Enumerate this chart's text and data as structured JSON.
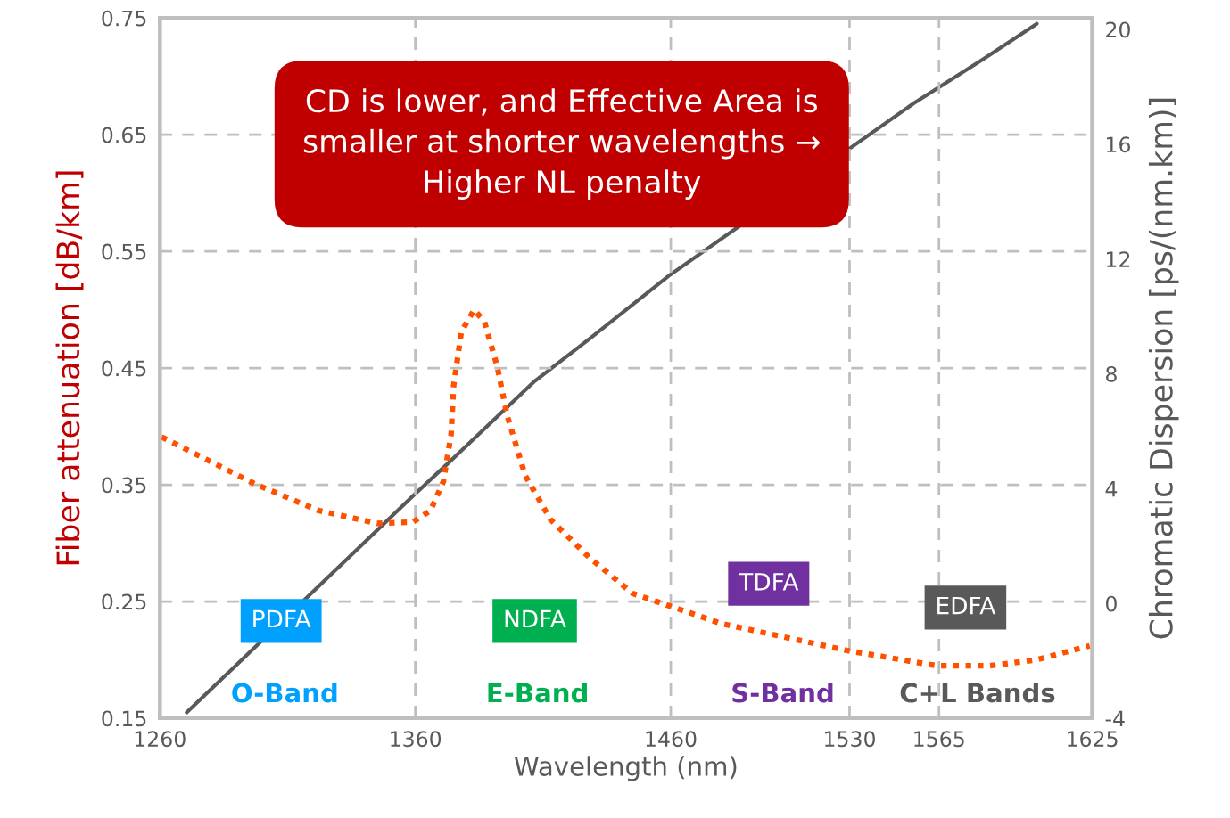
{
  "chart_data": {
    "type": "line",
    "xlabel": "Wavelength (nm)",
    "ylabel": "Fiber attenuation [dB/km]",
    "y2label": "Chromatic Dispersion [ps/(nm.km)]",
    "xlim": [
      1260,
      1625
    ],
    "xticks": [
      1260,
      1360,
      1460,
      1530,
      1565,
      1625
    ],
    "ylim": [
      0.15,
      0.75
    ],
    "yticks": [
      0.15,
      0.25,
      0.35,
      0.45,
      0.55,
      0.65,
      0.75
    ],
    "y2lim": [
      -4,
      20.4
    ],
    "y2ticks": [
      -4,
      0,
      4,
      8,
      12,
      16,
      20
    ],
    "grid": true,
    "series": [
      {
        "color": "#ff5000",
        "line_style": "dotted",
        "x": [
          1260.7,
          1297,
          1322,
          1345,
          1359,
          1366,
          1371,
          1374,
          1375,
          1378,
          1383,
          1387,
          1392,
          1396,
          1403,
          1413,
          1428,
          1445,
          1480,
          1529,
          1564,
          1585,
          1603,
          1624
        ],
        "values": [
          0.391,
          0.351,
          0.328,
          0.317,
          0.318,
          0.328,
          0.353,
          0.393,
          0.435,
          0.481,
          0.5,
          0.49,
          0.452,
          0.409,
          0.358,
          0.32,
          0.288,
          0.257,
          0.231,
          0.208,
          0.195,
          0.195,
          0.2,
          0.212
        ]
      },
      {
        "color": "#595959",
        "line_style": "solid",
        "axis": "y2",
        "x": [
          1270.5,
          1359,
          1373,
          1406.8,
          1427.8,
          1459.3,
          1555.5,
          1582,
          1603.3
        ],
        "values": [
          -3.8,
          3.74,
          4.9,
          7.75,
          9.19,
          11.42,
          17.45,
          18.95,
          20.2
        ]
      }
    ],
    "annotations": [
      "CD is lower, and Effective Area is\nsmaller at shorter wavelengths →\nHigher NL penalty",
      "PDFA",
      "NDFA",
      "TDFA",
      "EDFA",
      "O-Band",
      "E-Band",
      "S-Band",
      "C+L Bands"
    ]
  }
}
